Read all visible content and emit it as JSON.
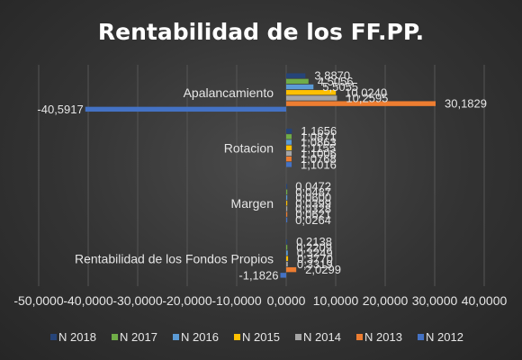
{
  "chart_data": {
    "type": "bar",
    "orientation": "horizontal",
    "title": "Rentabilidad de los FF.PP.",
    "categories": [
      "Rentabilidad de los Fondos Propios",
      "Margen",
      "Rotacion",
      "Apalancamiento"
    ],
    "series": [
      {
        "name": "N 2012",
        "color": "#4472C4",
        "values": [
          -1.1826,
          0.0264,
          1.1016,
          -40.5917
        ],
        "labels": [
          "-1,1826",
          "0,0264",
          "1,1016",
          "-40,5917"
        ]
      },
      {
        "name": "N 2013",
        "color": "#ED7D31",
        "values": [
          2.0299,
          0.0621,
          1.0768,
          30.1829
        ],
        "labels": [
          "2,0299",
          "0,0621",
          "1,0768",
          "30,1829"
        ]
      },
      {
        "name": "N 2014",
        "color": "#A5A5A5",
        "values": [
          0.3319,
          0.0328,
          1.1006,
          10.2595
        ],
        "labels": [
          "0,3319",
          "0,0328",
          "1,1006",
          "10,2595"
        ]
      },
      {
        "name": "N 2015",
        "color": "#FFC000",
        "values": [
          0.377,
          0.0399,
          1.1155,
          10.024
        ],
        "labels": [
          "0,3770",
          "0,0399",
          "1,1155",
          "10,0240"
        ]
      },
      {
        "name": "N 2016",
        "color": "#5B9BD5",
        "values": [
          0.3249,
          0.06,
          1.0863,
          5.5055
        ],
        "labels": [
          "0,3249",
          "0,0600",
          "1,0863",
          "5,5055"
        ]
      },
      {
        "name": "N 2017",
        "color": "#70AD47",
        "values": [
          0.2209,
          0.0487,
          1.0871,
          4.5056
        ],
        "labels": [
          "0,2209",
          "0,0487",
          "1,0871",
          "4,5056"
        ]
      },
      {
        "name": "N 2018",
        "color": "#264478",
        "values": [
          0.2138,
          0.0472,
          1.1656,
          3.887
        ],
        "labels": [
          "0,2138",
          "0,0472",
          "1,1656",
          "3,8870"
        ]
      }
    ],
    "xlim": [
      -50,
      40
    ],
    "x_ticks": [
      "-50,0000",
      "-40,0000",
      "-30,0000",
      "-20,0000",
      "-10,0000",
      "0,0000",
      "10,0000",
      "20,0000",
      "30,0000",
      "40,0000"
    ],
    "grid": true,
    "legend_position": "bottom"
  }
}
